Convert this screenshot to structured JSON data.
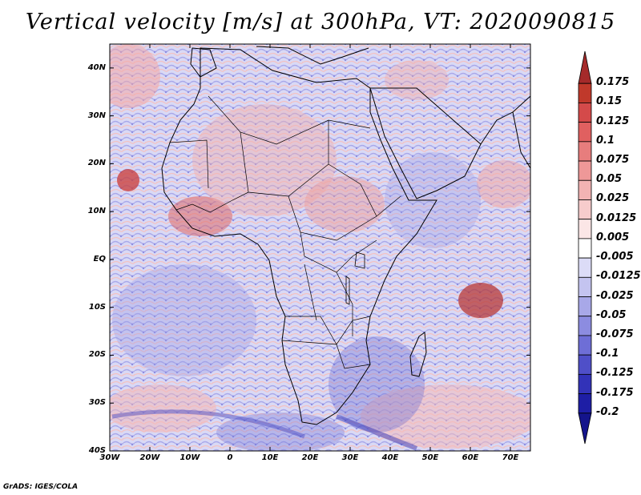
{
  "title": "Vertical velocity [m/s] at 300hPa, VT: 2020090815",
  "footer": "GrADS: IGES/COLA",
  "map": {
    "lat_labels": [
      "40N",
      "30N",
      "20N",
      "10N",
      "EQ",
      "10S",
      "20S",
      "30S",
      "40S"
    ],
    "lon_labels": [
      "30W",
      "20W",
      "10W",
      "0",
      "10E",
      "20E",
      "30E",
      "40E",
      "50E",
      "60E",
      "70E"
    ],
    "lat_range": [
      -40,
      45
    ],
    "lon_range": [
      -30,
      75
    ]
  },
  "colorbar": {
    "labels": [
      "0.175",
      "0.15",
      "0.125",
      "0.1",
      "0.075",
      "0.05",
      "0.025",
      "0.0125",
      "0.005",
      "-0.005",
      "-0.0125",
      "-0.025",
      "-0.05",
      "-0.075",
      "-0.1",
      "-0.125",
      "-0.175",
      "-0.2"
    ],
    "colors": [
      "#a52a2a",
      "#c0392b",
      "#d44a4a",
      "#e06060",
      "#e77d7d",
      "#ee9898",
      "#f2b3b3",
      "#f7cccc",
      "#fbe6e6",
      "#ffffff",
      "#dcdcf7",
      "#c4c4f0",
      "#a8a8e8",
      "#8c8ce0",
      "#6e6ed6",
      "#4f4fc8",
      "#3232b8",
      "#1e1ea5",
      "#14148c"
    ]
  }
}
